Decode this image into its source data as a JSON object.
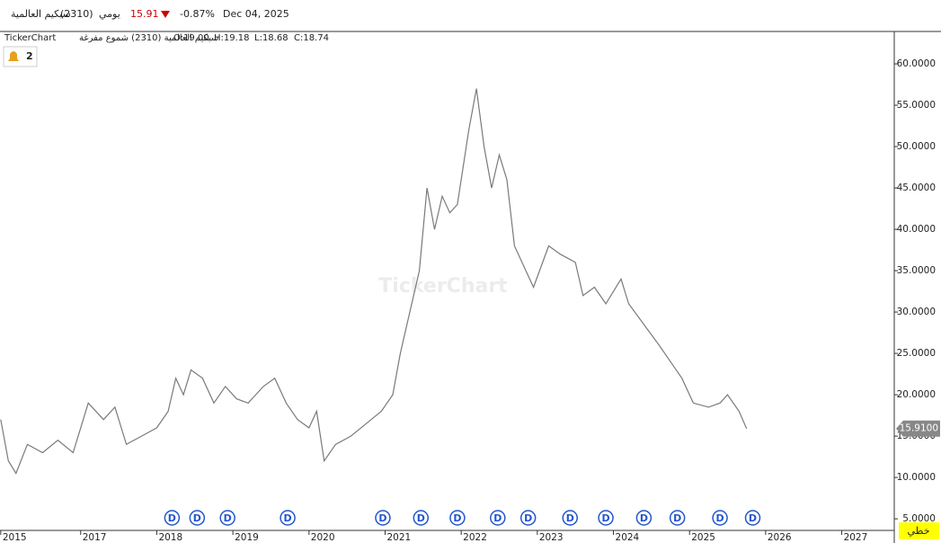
{
  "header": {
    "name": "سبكيم العالمية",
    "code": "(2310)",
    "period": "يومي",
    "price": "15.91",
    "change": "-0.87%",
    "date": "Dec 04, 2025"
  },
  "legend": {
    "brand": "TickerChart",
    "series_name": "سبكيم العالمية (2310) شموع مفرغة",
    "open": "O:19.00",
    "high": "H:19.18",
    "low": "L:18.68",
    "close": "C:18.74"
  },
  "alerts": "2",
  "watermark": "TickerChart",
  "chart_type_button": "خطي",
  "chart_data": {
    "type": "line",
    "color": "#7a7a7a",
    "x": [
      2015.95,
      2016.05,
      2016.15,
      2016.3,
      2016.5,
      2016.7,
      2016.9,
      2017.0,
      2017.1,
      2017.3,
      2017.45,
      2017.6,
      2017.8,
      2018.0,
      2018.15,
      2018.25,
      2018.35,
      2018.45,
      2018.6,
      2018.75,
      2018.9,
      2019.05,
      2019.2,
      2019.4,
      2019.55,
      2019.7,
      2019.85,
      2020.0,
      2020.1,
      2020.2,
      2020.35,
      2020.55,
      2020.75,
      2020.95,
      2021.1,
      2021.2,
      2021.35,
      2021.45,
      2021.55,
      2021.65,
      2021.75,
      2021.85,
      2021.95,
      2022.1,
      2022.2,
      2022.3,
      2022.4,
      2022.5,
      2022.6,
      2022.7,
      2022.85,
      2022.95,
      2023.15,
      2023.3,
      2023.5,
      2023.6,
      2023.75,
      2023.9,
      2024.1,
      2024.2,
      2024.4,
      2024.6,
      2024.75,
      2024.9,
      2025.05,
      2025.25,
      2025.4,
      2025.5,
      2025.65,
      2025.75
    ],
    "values": [
      17,
      12,
      10.5,
      14,
      13,
      14.5,
      13,
      16,
      19,
      17,
      18.5,
      14,
      15,
      16,
      18,
      22,
      20,
      23,
      22,
      19,
      21,
      19.5,
      19,
      21,
      22,
      19,
      17,
      16,
      18,
      12,
      14,
      15,
      16.5,
      18,
      20,
      25,
      31,
      35,
      45,
      40,
      44,
      42,
      43,
      52,
      57,
      50,
      45,
      49,
      46,
      38,
      35,
      33,
      38,
      37,
      36,
      32,
      33,
      31,
      34,
      31,
      28.5,
      26,
      24,
      22,
      19,
      18.5,
      19,
      20,
      18,
      15.9
    ],
    "xlim": [
      2015.94,
      2027.69
    ],
    "xticks": [
      {
        "value": 2015.95,
        "label": "2015"
      },
      2017,
      2018,
      2019,
      2020,
      2021,
      2022,
      2023,
      2024,
      2025,
      2026,
      2027
    ],
    "ylim": [
      3.6,
      63.7
    ],
    "yticks": [
      {
        "value": 5,
        "label": "5.0000"
      },
      {
        "value": 10,
        "label": "10.0000"
      },
      {
        "value": 15,
        "label": "15.0000"
      },
      {
        "value": 20,
        "label": "20.0000"
      },
      {
        "value": 25,
        "label": "25.0000"
      },
      {
        "value": 30,
        "label": "30.0000"
      },
      {
        "value": 35,
        "label": "35.0000"
      },
      {
        "value": 40,
        "label": "40.0000"
      },
      {
        "value": 45,
        "label": "45.0000"
      },
      {
        "value": 50,
        "label": "50.0000"
      },
      {
        "value": 55,
        "label": "55.0000"
      },
      {
        "value": 60,
        "label": "60.0000"
      }
    ],
    "last_price": {
      "value": 15.91,
      "label": "15.9100"
    },
    "events": {
      "label": "D",
      "x": [
        2018.2,
        2018.53,
        2018.93,
        2019.72,
        2020.97,
        2021.47,
        2021.95,
        2022.48,
        2022.88,
        2023.43,
        2023.9,
        2024.4,
        2024.84,
        2025.4,
        2025.83
      ]
    }
  }
}
